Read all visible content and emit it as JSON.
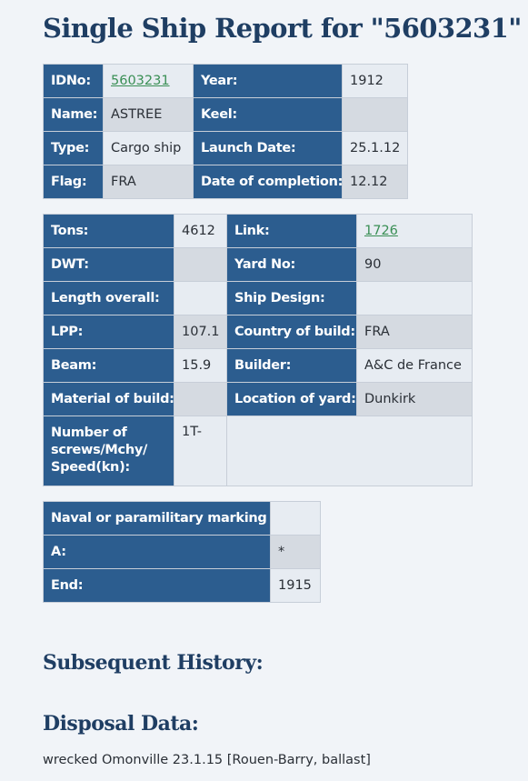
{
  "page_title": "Single Ship Report for \"5603231\"",
  "table1": {
    "rows": [
      {
        "label1": "IDNo:",
        "value1": "5603231",
        "label2": "Year:",
        "value2": "1912"
      },
      {
        "label1": "Name:",
        "value1": "ASTREE",
        "label2": "Keel:",
        "value2": ""
      },
      {
        "label1": "Type:",
        "value1": "Cargo ship",
        "label2": "Launch Date:",
        "value2": "25.1.12"
      },
      {
        "label1": "Flag:",
        "value1": "FRA",
        "label2": "Date of completion:",
        "value2": "12.12"
      }
    ]
  },
  "table2": {
    "rows": [
      {
        "label1": "Tons:",
        "value1": "4612",
        "label2": "Link:",
        "value2": "1726"
      },
      {
        "label1": "DWT:",
        "value1": "",
        "label2": "Yard No:",
        "value2": "90"
      },
      {
        "label1": "Length overall:",
        "value1": "",
        "label2": "Ship Design:",
        "value2": ""
      },
      {
        "label1": "LPP:",
        "value1": "107.1",
        "label2": "Country of build:",
        "value2": "FRA"
      },
      {
        "label1": "Beam:",
        "value1": "15.9",
        "label2": "Builder:",
        "value2": "A&C de France"
      },
      {
        "label1": "Material of build:",
        "value1": "",
        "label2": "Location of yard:",
        "value2": "Dunkirk"
      },
      {
        "label1": "Number of screws/Mchy/ Speed(kn):",
        "value1": "1T-",
        "label2": "",
        "value2": ""
      }
    ]
  },
  "table3": {
    "rows": [
      {
        "label": "Naval or paramilitary marking :",
        "value": ""
      },
      {
        "label": "A:",
        "value": "*"
      },
      {
        "label": "End:",
        "value": "1915"
      }
    ]
  },
  "subsequent_history_heading": "Subsequent History:",
  "disposal_heading": "Disposal Data:",
  "disposal_text": "wrecked Omonville 23.1.15 [Rouen-Barry, ballast]",
  "colors": {
    "background": "#f1f4f8",
    "heading": "#1f3e63",
    "label_cell": "#2c5d8f",
    "value_cell_light": "#e7ecf2",
    "value_cell_dark": "#d5dae1",
    "link": "#3a8f55"
  }
}
